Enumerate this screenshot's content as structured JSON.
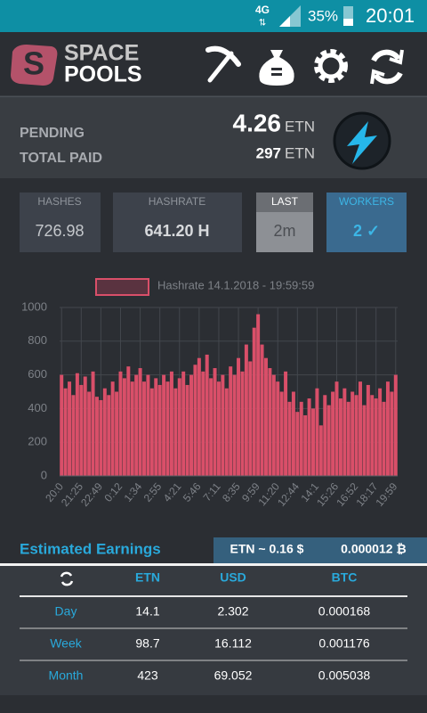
{
  "status_bar": {
    "network": "4G",
    "battery": "35%",
    "time": "20:01"
  },
  "header": {
    "logo_top": "SPACE",
    "logo_bottom": "POOLS"
  },
  "balance": {
    "pending_label": "PENDING",
    "pending_value": "4.26",
    "pending_unit": "ETN",
    "paid_label": "TOTAL PAID",
    "paid_value": "297",
    "paid_unit": "ETN"
  },
  "stats": [
    {
      "label": "HASHES",
      "value": "726.98"
    },
    {
      "label": "HASHRATE",
      "value": "641.20 H"
    },
    {
      "label": "LAST",
      "value": "2m"
    },
    {
      "label": "WORKERS",
      "value": "2 ✓"
    }
  ],
  "chart_data": {
    "type": "bar",
    "categories": [
      "20:0",
      null,
      null,
      null,
      null,
      "21:25",
      null,
      null,
      null,
      null,
      "22:49",
      null,
      null,
      null,
      null,
      "0:12",
      null,
      null,
      null,
      null,
      "1:34",
      null,
      null,
      null,
      null,
      "2:55",
      null,
      null,
      null,
      null,
      "4:21",
      null,
      null,
      null,
      null,
      "5:46",
      null,
      null,
      null,
      null,
      "7:11",
      null,
      null,
      null,
      null,
      "8:35",
      null,
      null,
      null,
      null,
      "9:59",
      null,
      null,
      null,
      null,
      "11:20",
      null,
      null,
      null,
      null,
      "12:44",
      null,
      null,
      null,
      null,
      "14:1",
      null,
      null,
      null,
      null,
      "15:26",
      null,
      null,
      null,
      null,
      "16:52",
      null,
      null,
      null,
      null,
      "18:17",
      null,
      null,
      null,
      null,
      "19:59"
    ],
    "series": [
      {
        "name": "Hashrate 14.1.2018 - 19:59:59",
        "color": "#d94f69",
        "values": [
          600,
          520,
          560,
          480,
          610,
          540,
          590,
          500,
          620,
          470,
          450,
          520,
          480,
          560,
          500,
          620,
          580,
          650,
          560,
          600,
          640,
          560,
          600,
          520,
          580,
          540,
          600,
          560,
          620,
          520,
          580,
          620,
          540,
          600,
          660,
          700,
          620,
          720,
          580,
          640,
          560,
          600,
          520,
          650,
          600,
          700,
          620,
          780,
          680,
          880,
          960,
          780,
          700,
          640,
          600,
          560,
          500,
          620,
          440,
          500,
          380,
          440,
          360,
          460,
          400,
          520,
          300,
          480,
          420,
          500,
          560,
          460,
          520,
          440,
          500,
          480,
          560,
          420,
          540,
          480,
          460,
          520,
          440,
          560,
          500,
          600
        ]
      }
    ],
    "ylim": [
      0,
      1000
    ],
    "yticks": [
      0,
      200,
      400,
      600,
      800,
      1000
    ],
    "grid": true
  },
  "earnings": {
    "title": "Estimated Earnings",
    "rate_usd": "ETN ~ 0.16 $",
    "rate_btc": "0.000012 ₿",
    "columns": [
      "ETN",
      "USD",
      "BTC"
    ],
    "rows": [
      [
        "Day",
        "14.1",
        "2.302",
        "0.000168"
      ],
      [
        "Week",
        "98.7",
        "16.112",
        "0.001176"
      ],
      [
        "Month",
        "423",
        "69.052",
        "0.005038"
      ]
    ]
  }
}
